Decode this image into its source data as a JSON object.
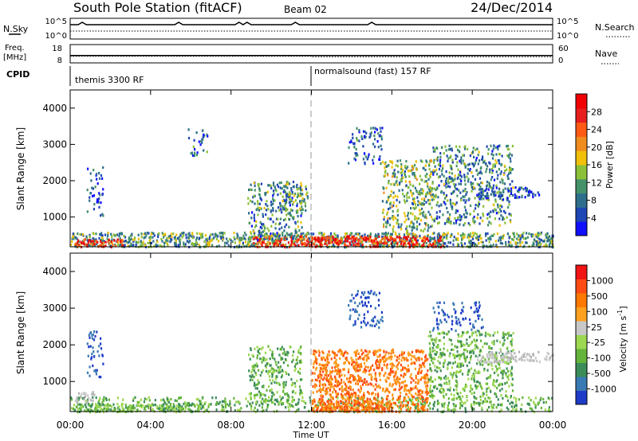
{
  "header": {
    "station": "South Pole Station (fitACF)",
    "beam": "Beam 02",
    "date": "24/Dec/2014"
  },
  "status_panels": {
    "left_labels": {
      "nsky": "N.Sky",
      "freq_line1": "Freq.",
      "freq_line2": "[MHz]",
      "cpid": "CPID"
    },
    "right_labels": {
      "nsearch": "N.Search",
      "nave": "Nave"
    },
    "noise_ticks_left": [
      "10^5",
      "10^0"
    ],
    "noise_ticks_right": [
      "10^5",
      "10^0"
    ],
    "freq_ticks": [
      "18",
      "8"
    ],
    "nave_ticks": [
      "60",
      "0"
    ],
    "freq_mhz": 12,
    "nave": 20,
    "cpid_segments": [
      {
        "label": "themis 3300 RF",
        "start_hour": 0,
        "end_hour": 12
      },
      {
        "label": "normalsound (fast) 157 RF",
        "start_hour": 12,
        "end_hour": 24
      }
    ]
  },
  "axes": {
    "ylabel": "Slant Range [km]",
    "yticks": [
      "1000",
      "2000",
      "3000",
      "4000"
    ],
    "xticks": [
      "00:00",
      "04:00",
      "08:00",
      "12:00",
      "16:00",
      "20:00",
      "00:00"
    ],
    "xlabel": "Time UT"
  },
  "chart_data": [
    {
      "type": "heatmap",
      "title": "",
      "xlabel": "Time UT",
      "ylabel": "Slant Range [km]",
      "xlim_hours": [
        0,
        24
      ],
      "ylim_km": [
        180,
        4500
      ],
      "colorbar": {
        "label": "Power [dB]",
        "ticks": [
          "4",
          "8",
          "12",
          "16",
          "20",
          "24",
          "28"
        ],
        "colors": [
          "#1010ff",
          "#1e46b4",
          "#2e6e8c",
          "#44916a",
          "#8cc038",
          "#f0c00a",
          "#f08c1e",
          "#ff5a14",
          "#e61e1e",
          "#f00000"
        ]
      },
      "echo_regions": [
        {
          "t0": 0.0,
          "t1": 24.0,
          "r0": 200,
          "r1": 600,
          "density": 0.9,
          "level": 0.35
        },
        {
          "t0": 0.2,
          "t1": 2.6,
          "r0": 200,
          "r1": 420,
          "density": 0.9,
          "level": 0.85
        },
        {
          "t0": 9.0,
          "t1": 18.5,
          "r0": 200,
          "r1": 500,
          "density": 0.95,
          "level": 0.85
        },
        {
          "t0": 0.8,
          "t1": 1.6,
          "r0": 1050,
          "r1": 2400,
          "density": 0.3,
          "level": 0.15
        },
        {
          "t0": 5.8,
          "t1": 6.8,
          "r0": 2700,
          "r1": 3500,
          "density": 0.3,
          "level": 0.2
        },
        {
          "t0": 8.8,
          "t1": 11.5,
          "r0": 400,
          "r1": 2000,
          "density": 0.45,
          "level": 0.3
        },
        {
          "t0": 10.5,
          "t1": 11.8,
          "r0": 1200,
          "r1": 1900,
          "density": 0.55,
          "level": 0.35
        },
        {
          "t0": 13.8,
          "t1": 15.5,
          "r0": 2500,
          "r1": 3500,
          "density": 0.35,
          "level": 0.2
        },
        {
          "t0": 15.5,
          "t1": 18.0,
          "r0": 600,
          "r1": 2600,
          "density": 0.5,
          "level": 0.4
        },
        {
          "t0": 18.0,
          "t1": 22.0,
          "r0": 800,
          "r1": 3000,
          "density": 0.45,
          "level": 0.3
        },
        {
          "t0": 20.2,
          "t1": 23.3,
          "r0": 1550,
          "r1": 1850,
          "density": 0.7,
          "level": 0.15
        }
      ]
    },
    {
      "type": "heatmap",
      "title": "",
      "xlabel": "Time UT",
      "ylabel": "Slant Range [km]",
      "xlim_hours": [
        0,
        24
      ],
      "ylim_km": [
        180,
        4500
      ],
      "colorbar": {
        "label": "Velocity [m s^-1]",
        "ticks": [
          "1000",
          "500",
          "100",
          "25",
          "-25",
          "-100",
          "-500",
          "-1000"
        ],
        "colors": [
          "#1e3cc8",
          "#3a7ab4",
          "#3c8c5a",
          "#64b43c",
          "#9cd850",
          "#c8c8c8",
          "#ffa01e",
          "#ff7800",
          "#ff4b14",
          "#f01414"
        ]
      },
      "echo_regions": [
        {
          "t0": 0.0,
          "t1": 24.0,
          "r0": 200,
          "r1": 600,
          "density": 0.5,
          "v": "green"
        },
        {
          "t0": 0.0,
          "t1": 6.5,
          "r0": 200,
          "r1": 420,
          "density": 0.9,
          "v": "green"
        },
        {
          "t0": 0.2,
          "t1": 1.2,
          "r0": 450,
          "r1": 750,
          "density": 0.6,
          "v": "gray"
        },
        {
          "t0": 0.8,
          "t1": 1.6,
          "r0": 1050,
          "r1": 2400,
          "density": 0.3,
          "v": "blue"
        },
        {
          "t0": 8.8,
          "t1": 11.5,
          "r0": 400,
          "r1": 2000,
          "density": 0.45,
          "v": "green"
        },
        {
          "t0": 12.0,
          "t1": 17.8,
          "r0": 200,
          "r1": 1900,
          "density": 0.7,
          "v": "orange"
        },
        {
          "t0": 12.0,
          "t1": 16.0,
          "r0": 200,
          "r1": 500,
          "density": 0.95,
          "v": "orange"
        },
        {
          "t0": 13.8,
          "t1": 15.5,
          "r0": 2500,
          "r1": 3500,
          "density": 0.35,
          "v": "blue"
        },
        {
          "t0": 17.8,
          "t1": 22.0,
          "r0": 600,
          "r1": 2400,
          "density": 0.5,
          "v": "green"
        },
        {
          "t0": 18.0,
          "t1": 20.5,
          "r0": 2400,
          "r1": 3200,
          "density": 0.3,
          "v": "blue"
        },
        {
          "t0": 20.2,
          "t1": 24.0,
          "r0": 1550,
          "r1": 1850,
          "density": 0.7,
          "v": "gray"
        }
      ]
    }
  ]
}
